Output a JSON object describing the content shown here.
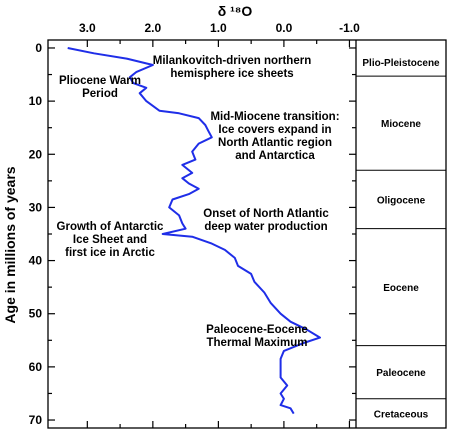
{
  "chart_data": {
    "type": "line",
    "title": "",
    "xlabel": "δ ¹⁸O",
    "ylabel": "Age in millions of years",
    "x_reversed": true,
    "xlim": [
      3.6,
      -1.1
    ],
    "ylim": [
      -1.5,
      71.5
    ],
    "x_ticks": [
      3.0,
      2.0,
      1.0,
      0.0,
      -1.0
    ],
    "x_tick_labels": [
      "3.0",
      "2.0",
      "1.0",
      "0.0",
      "-1.0"
    ],
    "y_ticks": [
      0,
      10,
      20,
      30,
      40,
      50,
      60,
      70
    ],
    "y_tick_labels": [
      "0",
      "10",
      "20",
      "30",
      "40",
      "50",
      "60",
      "70"
    ],
    "series": [
      {
        "color": "#1f2ee8",
        "points": [
          [
            3.3,
            0.0
          ],
          [
            2.9,
            1.0
          ],
          [
            2.4,
            2.0
          ],
          [
            2.0,
            3.2
          ],
          [
            2.25,
            4.5
          ],
          [
            2.35,
            5.5
          ],
          [
            2.3,
            6.6
          ],
          [
            2.1,
            7.5
          ],
          [
            2.2,
            8.5
          ],
          [
            2.1,
            10.0
          ],
          [
            1.9,
            11.8
          ],
          [
            1.6,
            12.3
          ],
          [
            1.3,
            13.2
          ],
          [
            1.2,
            14.5
          ],
          [
            1.15,
            15.7
          ],
          [
            1.1,
            16.8
          ],
          [
            1.3,
            18.0
          ],
          [
            1.4,
            19.5
          ],
          [
            1.35,
            21.0
          ],
          [
            1.55,
            22.0
          ],
          [
            1.4,
            23.5
          ],
          [
            1.55,
            24.5
          ],
          [
            1.45,
            25.5
          ],
          [
            1.3,
            26.5
          ],
          [
            1.45,
            27.5
          ],
          [
            1.7,
            28.5
          ],
          [
            1.75,
            30.0
          ],
          [
            1.6,
            31.5
          ],
          [
            1.55,
            33.0
          ],
          [
            1.5,
            34.0
          ],
          [
            1.85,
            35.0
          ],
          [
            1.4,
            35.5
          ],
          [
            1.1,
            36.8
          ],
          [
            0.9,
            38.0
          ],
          [
            0.75,
            39.5
          ],
          [
            0.7,
            41.0
          ],
          [
            0.5,
            42.5
          ],
          [
            0.45,
            44.0
          ],
          [
            0.3,
            46.0
          ],
          [
            0.2,
            48.0
          ],
          [
            0.05,
            50.0
          ],
          [
            -0.1,
            51.5
          ],
          [
            -0.35,
            53.0
          ],
          [
            -0.55,
            54.5
          ],
          [
            -0.3,
            55.5
          ],
          [
            0.0,
            57.0
          ],
          [
            0.05,
            58.5
          ],
          [
            0.05,
            60.0
          ],
          [
            0.05,
            62.0
          ],
          [
            -0.05,
            63.5
          ],
          [
            0.05,
            65.0
          ],
          [
            0.0,
            66.0
          ],
          [
            0.05,
            67.2
          ],
          [
            -0.1,
            67.8
          ],
          [
            -0.15,
            68.8
          ]
        ]
      }
    ],
    "epochs": [
      {
        "label": "Plio-Pleistocene",
        "from": 0,
        "to": 5.3
      },
      {
        "label": "Miocene",
        "from": 5.3,
        "to": 23
      },
      {
        "label": "Oligocene",
        "from": 23,
        "to": 34
      },
      {
        "label": "Eocene",
        "from": 34,
        "to": 56
      },
      {
        "label": "Paleocene",
        "from": 56,
        "to": 66
      },
      {
        "label": "Cretaceous",
        "from": 66,
        "to": 71.5
      }
    ],
    "annotations": [
      {
        "lines": [
          "Milankovitch-driven northern",
          "hemisphere ice sheets"
        ]
      },
      {
        "lines": [
          "Pliocene Warm",
          "Period"
        ]
      },
      {
        "lines": [
          "Mid-Miocene transition:",
          "Ice covers expand in",
          "North Atlantic region",
          "and Antarctica"
        ]
      },
      {
        "lines": [
          "Onset of North Atlantic",
          "deep water production"
        ]
      },
      {
        "lines": [
          "Growth of Antarctic",
          "Ice Sheet and",
          "first ice in Arctic"
        ]
      },
      {
        "lines": [
          "Paleocene-Eocene",
          "Thermal Maximum"
        ]
      }
    ]
  }
}
